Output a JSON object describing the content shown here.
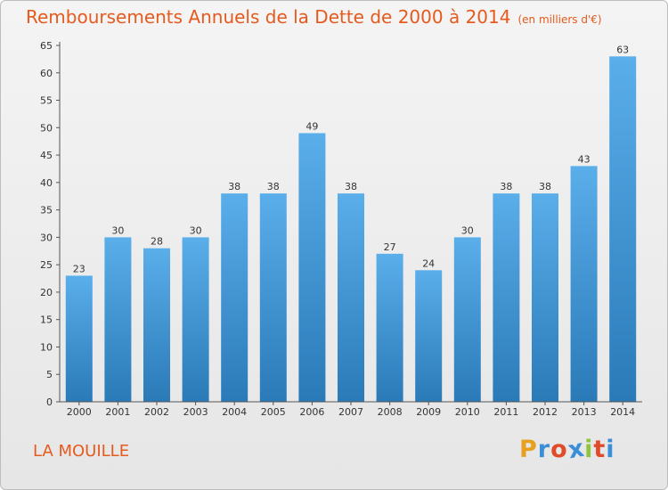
{
  "chart_data": {
    "type": "bar",
    "title": "Remboursements Annuels de la Dette de 2000 à 2014",
    "subtitle": "(en milliers d'€)",
    "categories": [
      "2000",
      "2001",
      "2002",
      "2003",
      "2004",
      "2005",
      "2006",
      "2007",
      "2008",
      "2009",
      "2010",
      "2011",
      "2012",
      "2013",
      "2014"
    ],
    "values": [
      23,
      30,
      28,
      30,
      38,
      38,
      49,
      38,
      27,
      24,
      30,
      38,
      38,
      43,
      63
    ],
    "ylim": [
      0,
      65
    ],
    "yticks": [
      0,
      5,
      10,
      15,
      20,
      25,
      30,
      35,
      40,
      45,
      50,
      55,
      60,
      65
    ],
    "grid": false,
    "bar_color_top": "#5aaeea",
    "bar_color_bottom": "#2a7ab8"
  },
  "commune": "LA MOUILLE",
  "logo": {
    "letters": [
      "P",
      "r",
      "o",
      "x",
      "i",
      "t",
      "i"
    ],
    "colors": [
      "#e8a020",
      "#3b8ed8",
      "#e04b2a",
      "#3b8ed8",
      "#8cc63f",
      "#e04b2a",
      "#3b8ed8"
    ]
  },
  "colors": {
    "accent": "#e65a1e",
    "axis": "#555555"
  }
}
